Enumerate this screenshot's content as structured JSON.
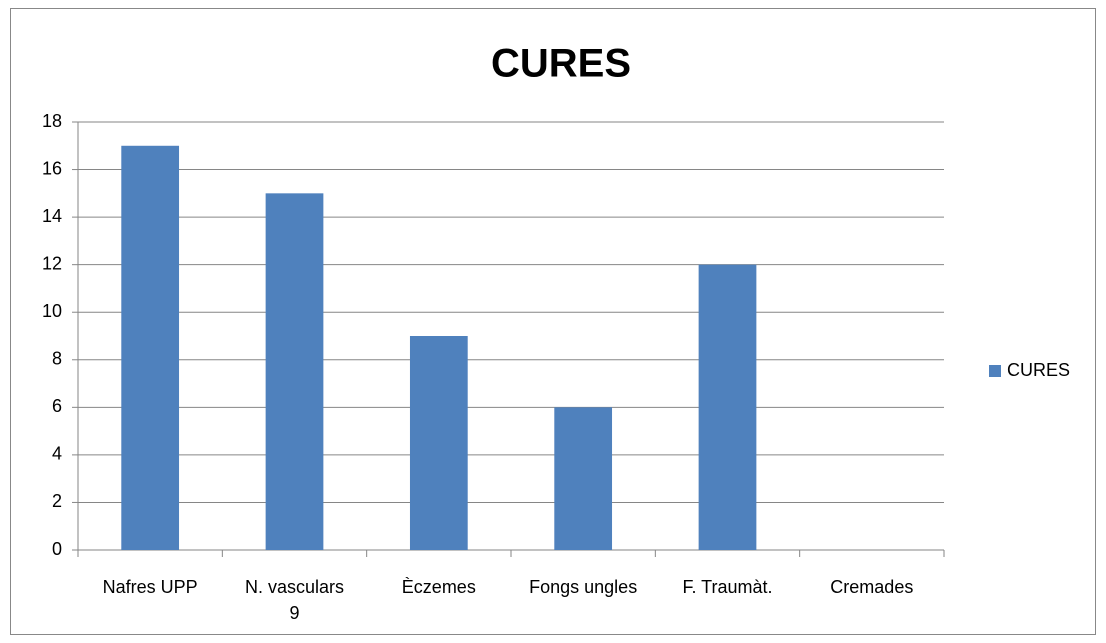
{
  "chart_data": {
    "type": "bar",
    "title": "CURES",
    "categories": [
      "Nafres UPP",
      "N. vasculars\n9",
      "Èczemes",
      "Fongs ungles",
      "F. Traumàt.",
      "Cremades"
    ],
    "series": [
      {
        "name": "CURES",
        "color": "#4f81bd",
        "values": [
          17,
          15,
          9,
          6,
          12,
          0
        ]
      }
    ],
    "ylim": [
      0,
      18
    ],
    "yticks": [
      0,
      2,
      4,
      6,
      8,
      10,
      12,
      14,
      16,
      18
    ],
    "grid": true,
    "legend": "right"
  }
}
